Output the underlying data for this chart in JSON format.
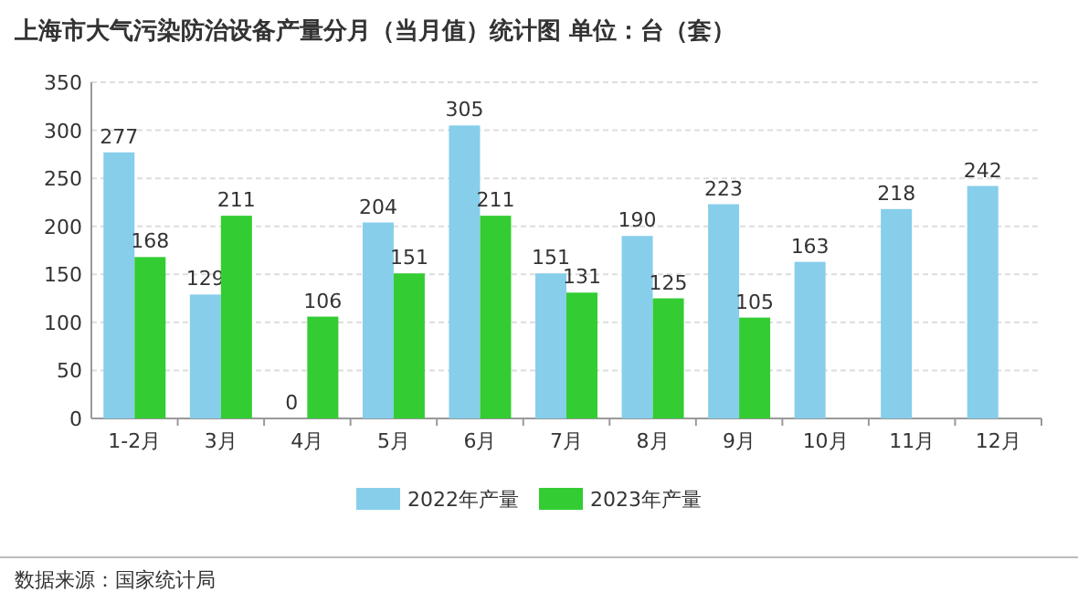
{
  "chart_data": {
    "type": "bar",
    "title": "上海市大气污染防治设备产量分月（当月值）统计图  单位：台（套）",
    "categories": [
      "1-2月",
      "3月",
      "4月",
      "5月",
      "6月",
      "7月",
      "8月",
      "9月",
      "10月",
      "11月",
      "12月"
    ],
    "series": [
      {
        "name": "2022年产量",
        "color": "#87ceeb",
        "values": [
          277,
          129,
          0,
          204,
          305,
          151,
          190,
          223,
          163,
          218,
          242
        ]
      },
      {
        "name": "2023年产量",
        "color": "#33cc33",
        "values": [
          168,
          211,
          106,
          151,
          211,
          131,
          125,
          105,
          null,
          null,
          null
        ]
      }
    ],
    "ylim": [
      0,
      350
    ],
    "yticks": [
      0,
      50,
      100,
      150,
      200,
      250,
      300,
      350
    ],
    "grid": "y",
    "legend": "bottom",
    "data_labels": true,
    "annotations": [
      "数据来源：国家统计局"
    ]
  }
}
